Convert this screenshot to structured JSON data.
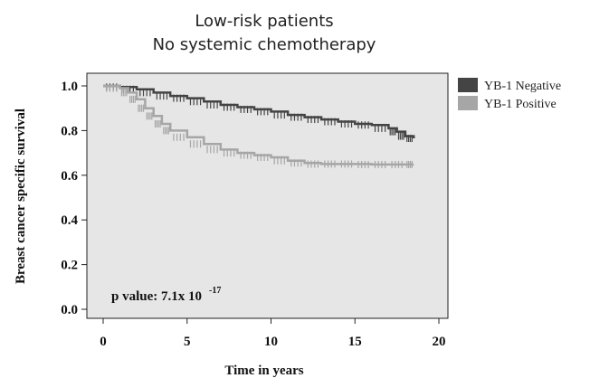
{
  "chart_data": {
    "type": "line",
    "title": "Low-risk patients",
    "subtitle": "No systemic chemotherapy",
    "xlabel": "Time in years",
    "ylabel": "Breast cancer specific survival",
    "xlim": [
      0,
      20
    ],
    "ylim": [
      0,
      1
    ],
    "x_ticks": [
      "0",
      "5",
      "10",
      "15",
      "20"
    ],
    "y_ticks": [
      "0.0",
      "0.2",
      "0.4",
      "0.6",
      "0.8",
      "1.0"
    ],
    "grid": false,
    "legend_position": "right",
    "annotation": {
      "text": "p value: 7.1x 10",
      "exponent": "-17"
    },
    "series": [
      {
        "name": "YB-1 Negative",
        "color": "#444444",
        "x": [
          0,
          1,
          2,
          3,
          4,
          5,
          6,
          7,
          8,
          9,
          10,
          11,
          12,
          13,
          14,
          15,
          16,
          17,
          17.5,
          18,
          18.5
        ],
        "y": [
          1.0,
          0.995,
          0.985,
          0.97,
          0.955,
          0.945,
          0.93,
          0.915,
          0.905,
          0.895,
          0.885,
          0.87,
          0.86,
          0.85,
          0.84,
          0.83,
          0.825,
          0.81,
          0.795,
          0.775,
          0.765
        ]
      },
      {
        "name": "YB-1 Positive",
        "color": "#a6a6a6",
        "x": [
          0,
          1,
          1.5,
          2,
          2.5,
          3,
          3.5,
          4,
          5,
          6,
          7,
          8,
          9,
          10,
          11,
          12,
          13,
          14,
          15,
          16,
          17,
          18,
          18.5
        ],
        "y": [
          1.0,
          0.99,
          0.97,
          0.94,
          0.9,
          0.865,
          0.83,
          0.8,
          0.77,
          0.74,
          0.715,
          0.7,
          0.69,
          0.68,
          0.665,
          0.655,
          0.65,
          0.65,
          0.65,
          0.648,
          0.648,
          0.648,
          0.648
        ]
      }
    ]
  }
}
